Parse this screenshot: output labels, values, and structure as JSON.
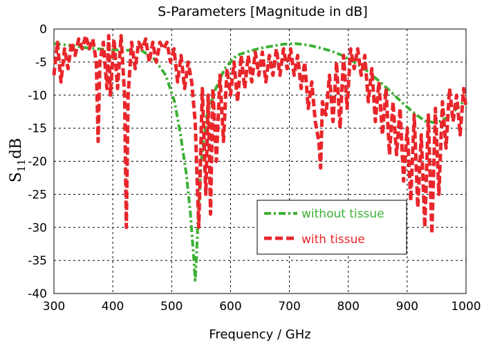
{
  "chart_data": {
    "type": "line",
    "title": "S-Parameters [Magnitude in dB]",
    "xlabel": "Frequency / GHz",
    "ylabel": "S11dB",
    "ylabel_main": "S",
    "ylabel_sub": "11",
    "ylabel_suffix": "dB",
    "xlim": [
      300,
      1000
    ],
    "ylim": [
      -40,
      0
    ],
    "xticks": [
      300,
      400,
      500,
      600,
      700,
      800,
      900,
      1000
    ],
    "yticks": [
      0,
      -5,
      -10,
      -15,
      -20,
      -25,
      -30,
      -35,
      -40
    ],
    "grid": true,
    "legend_position": "lower-right",
    "series": [
      {
        "name": "without tissue",
        "color": "#3cb034",
        "style": "dash-dot",
        "x": [
          300,
          330,
          360,
          390,
          420,
          450,
          470,
          490,
          505,
          515,
          525,
          532,
          537,
          540,
          542,
          545,
          550,
          560,
          575,
          590,
          610,
          630,
          650,
          670,
          690,
          710,
          730,
          750,
          770,
          790,
          810,
          830,
          850,
          870,
          890,
          910,
          930,
          950,
          970,
          990,
          1000
        ],
        "y": [
          -2.2,
          -2.5,
          -2.9,
          -3.1,
          -3.2,
          -3.3,
          -4.5,
          -7,
          -11,
          -16,
          -22,
          -28,
          -34,
          -38,
          -35,
          -28,
          -20,
          -13,
          -9,
          -6,
          -4,
          -3.4,
          -2.9,
          -2.6,
          -2.3,
          -2.2,
          -2.4,
          -2.8,
          -3.3,
          -4,
          -5,
          -6.2,
          -7.7,
          -9.3,
          -11,
          -12.6,
          -13.9,
          -14.2,
          -13.3,
          -11.5,
          -10.5
        ]
      },
      {
        "name": "with tissue",
        "color": "#e8262b",
        "style": "dashed",
        "x": [
          300,
          306,
          312,
          318,
          324,
          330,
          336,
          342,
          348,
          354,
          360,
          366,
          372,
          375,
          378,
          384,
          390,
          393,
          396,
          402,
          408,
          414,
          420,
          423,
          426,
          432,
          438,
          444,
          450,
          456,
          462,
          468,
          474,
          480,
          486,
          492,
          498,
          504,
          510,
          516,
          522,
          528,
          534,
          540,
          546,
          552,
          558,
          562,
          566,
          570,
          576,
          582,
          588,
          594,
          600,
          606,
          612,
          618,
          624,
          630,
          636,
          642,
          648,
          654,
          660,
          666,
          672,
          678,
          684,
          690,
          696,
          702,
          708,
          714,
          720,
          726,
          732,
          738,
          744,
          750,
          753,
          756,
          762,
          768,
          774,
          780,
          786,
          792,
          798,
          804,
          810,
          816,
          822,
          828,
          834,
          840,
          846,
          852,
          858,
          864,
          870,
          876,
          882,
          888,
          894,
          900,
          906,
          912,
          918,
          924,
          930,
          936,
          942,
          948,
          954,
          960,
          966,
          972,
          978,
          984,
          990,
          996,
          1000
        ],
        "y": [
          -7,
          -2,
          -8,
          -3,
          -6,
          -2,
          -4,
          -1.5,
          -3,
          -1,
          -3,
          -1.5,
          -5,
          -17,
          -5,
          -2,
          -9,
          -1,
          -10,
          -1.5,
          -9,
          -1,
          -10,
          -30,
          -10,
          -2,
          -6,
          -2,
          -3,
          -1.5,
          -5,
          -2,
          -5,
          -2,
          -3,
          -2,
          -5,
          -3,
          -8,
          -4,
          -9,
          -5,
          -8,
          -14,
          -30,
          -9,
          -25,
          -10,
          -28,
          -9,
          -20,
          -7,
          -17,
          -6,
          -10,
          -5,
          -11,
          -4,
          -9,
          -4,
          -8,
          -3.5,
          -7,
          -3.5,
          -8,
          -4,
          -7,
          -3,
          -7,
          -3,
          -6,
          -3,
          -7,
          -4,
          -9,
          -5,
          -12,
          -8,
          -14,
          -17,
          -21,
          -11,
          -13,
          -7,
          -14,
          -5,
          -15,
          -4,
          -12,
          -3,
          -6,
          -3,
          -7,
          -4,
          -11,
          -6,
          -14,
          -8,
          -16,
          -9,
          -19,
          -11,
          -19,
          -12,
          -23,
          -15,
          -26,
          -13,
          -27,
          -16,
          -30,
          -13,
          -31,
          -12,
          -25,
          -11,
          -18,
          -9,
          -14,
          -10,
          -16,
          -9,
          -12
        ]
      }
    ]
  }
}
